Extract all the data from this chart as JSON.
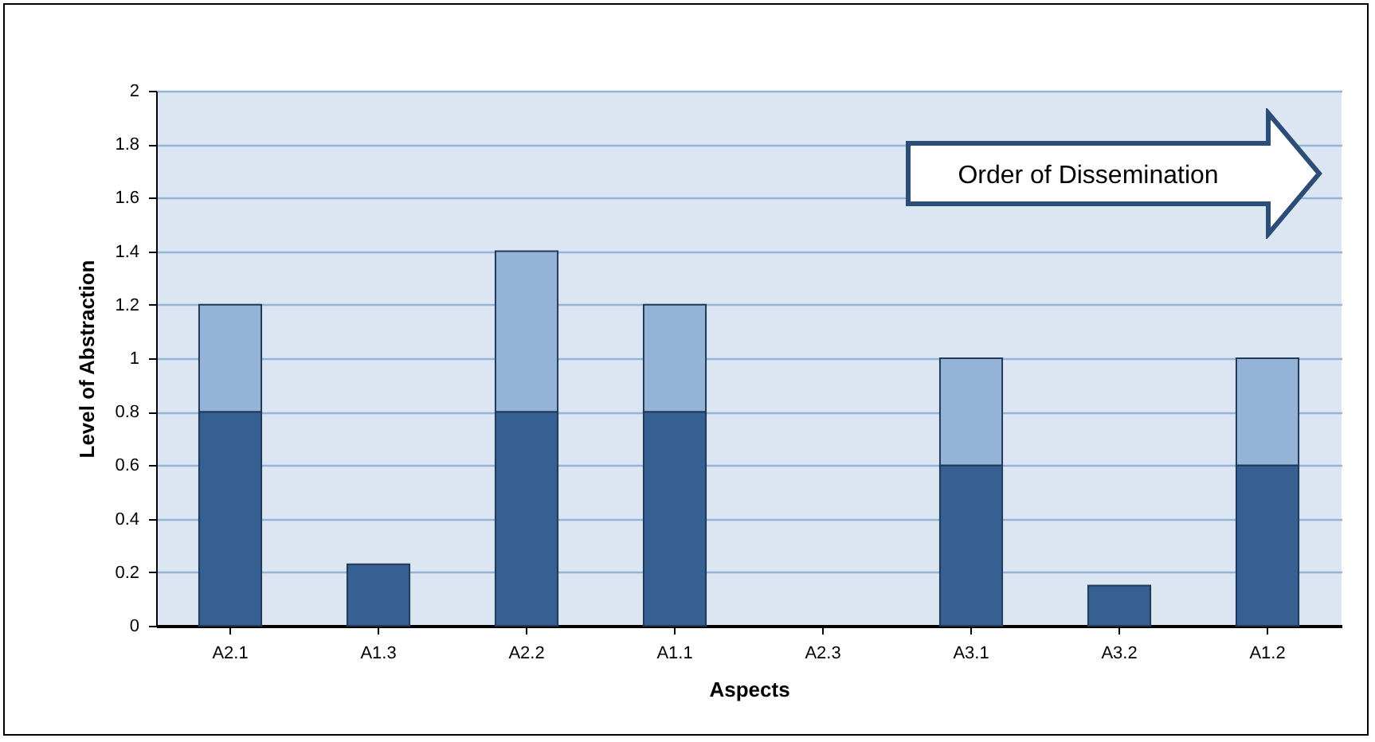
{
  "chart_data": {
    "type": "bar",
    "xlabel": "Aspects",
    "ylabel": "Level of Abstraction",
    "categories": [
      "A2.1",
      "A1.3",
      "A2.2",
      "A1.1",
      "A2.3",
      "A3.1",
      "A3.2",
      "A1.2"
    ],
    "series": [
      {
        "color": "#376092",
        "values": [
          0.8,
          0.23,
          0.8,
          0.8,
          0,
          0.6,
          0.15,
          0.6
        ]
      },
      {
        "color": "#95b3d7",
        "values": [
          0.4,
          0,
          0.6,
          0.4,
          0,
          0.4,
          0,
          0.4
        ]
      }
    ],
    "stacked": true,
    "ylim": [
      0,
      2
    ],
    "yticks": [
      0,
      0.2,
      0.4,
      0.6,
      0.8,
      1,
      1.2,
      1.4,
      1.6,
      1.8,
      2
    ],
    "grid": "y",
    "legend": false,
    "annotations": [
      "Order of Dissemination"
    ]
  }
}
